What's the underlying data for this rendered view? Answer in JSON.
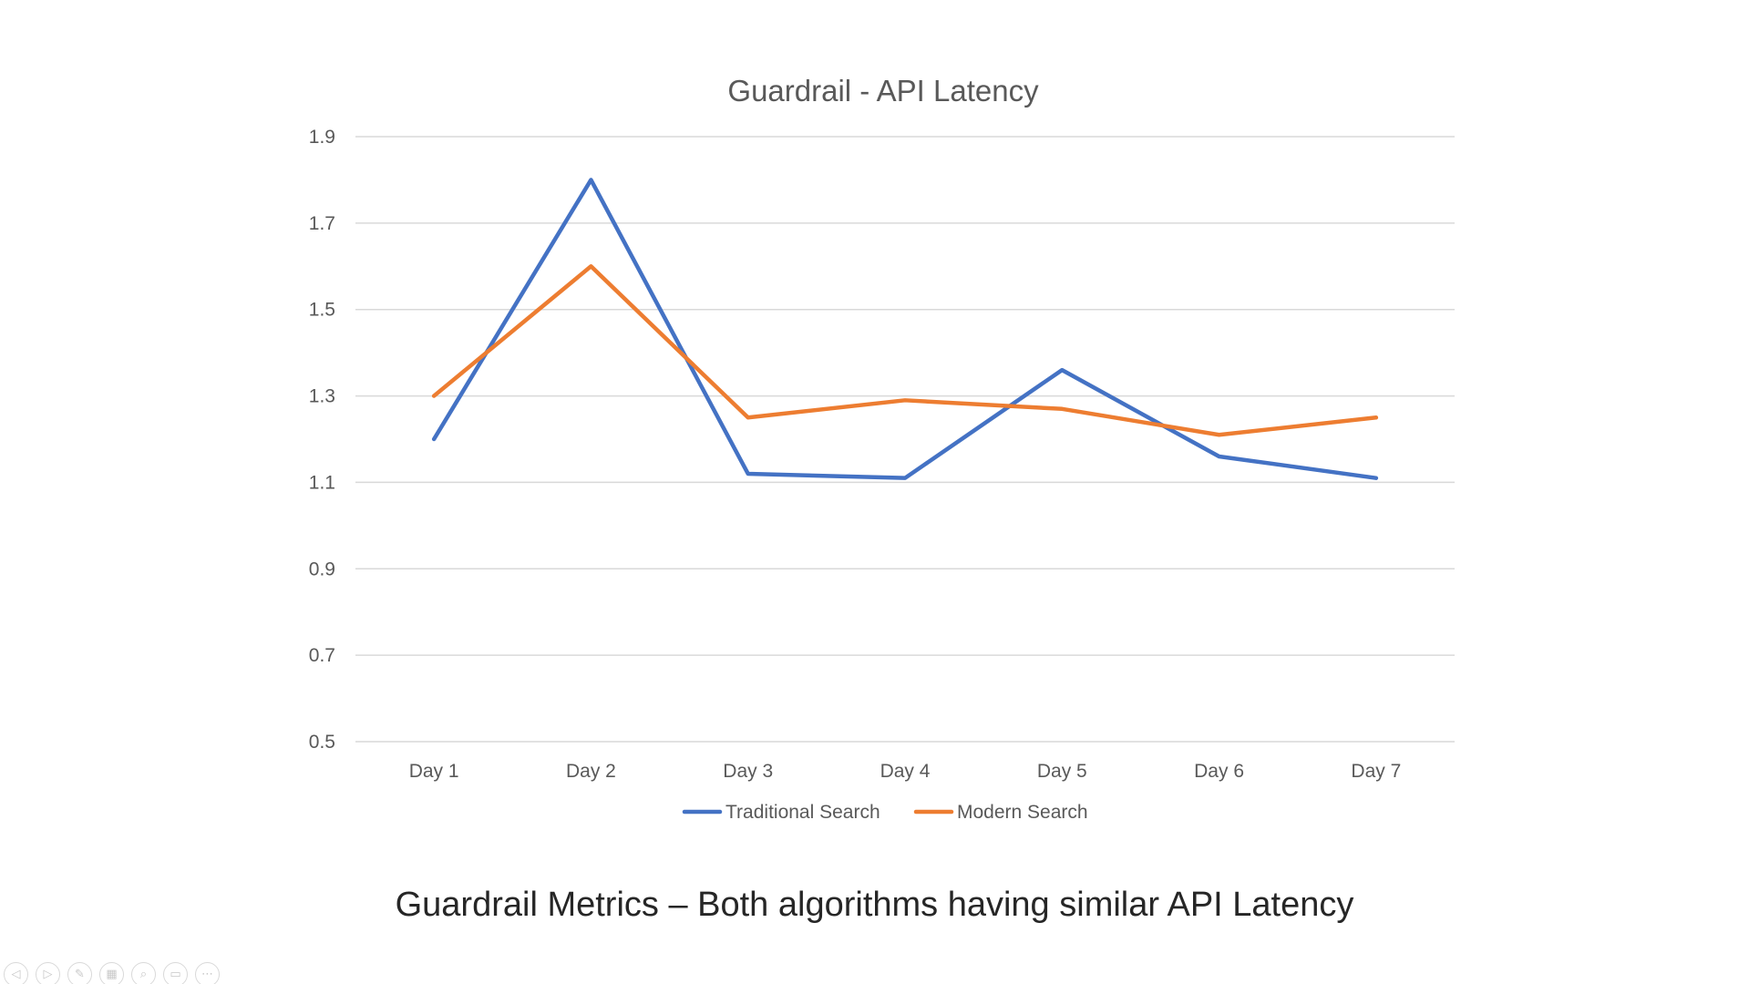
{
  "chart_data": {
    "type": "line",
    "title": "Guardrail - API Latency",
    "categories": [
      "Day 1",
      "Day 2",
      "Day 3",
      "Day 4",
      "Day 5",
      "Day 6",
      "Day 7"
    ],
    "series": [
      {
        "name": "Traditional Search",
        "color": "#4472C4",
        "values": [
          1.2,
          1.8,
          1.12,
          1.11,
          1.36,
          1.16,
          1.11
        ]
      },
      {
        "name": "Modern Search",
        "color": "#ED7D31",
        "values": [
          1.3,
          1.6,
          1.25,
          1.29,
          1.27,
          1.21,
          1.25
        ]
      }
    ],
    "yticks": [
      "0.5",
      "0.7",
      "0.9",
      "1.1",
      "1.3",
      "1.5",
      "1.7",
      "1.9"
    ],
    "ylim": [
      0.5,
      1.9
    ],
    "grid": true,
    "legend": "bottom"
  },
  "caption": "Guardrail Metrics – Both algorithms having similar API Latency",
  "slide_controls": [
    {
      "icon": "previous-slide-icon",
      "glyph": "◁"
    },
    {
      "icon": "next-slide-icon",
      "glyph": "▷"
    },
    {
      "icon": "pen-icon",
      "glyph": "✎"
    },
    {
      "icon": "see-all-slides-icon",
      "glyph": "▦"
    },
    {
      "icon": "zoom-icon",
      "glyph": "⌕"
    },
    {
      "icon": "subtitles-icon",
      "glyph": "▭"
    },
    {
      "icon": "more-options-icon",
      "glyph": "⋯"
    }
  ]
}
